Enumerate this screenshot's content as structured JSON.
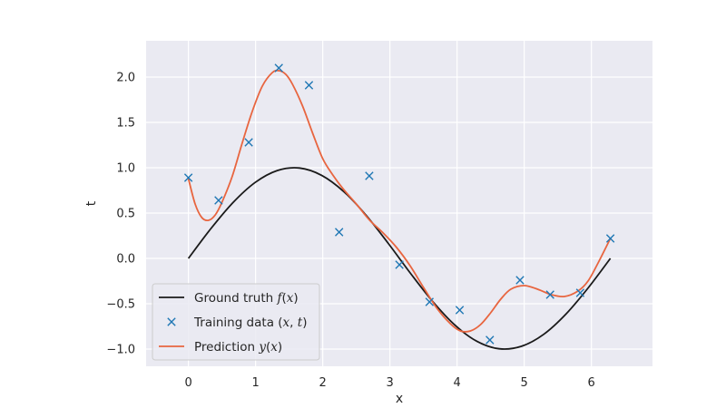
{
  "chart_data": {
    "type": "line",
    "title": "",
    "xlabel": "x",
    "ylabel": "t",
    "xlim": [
      -0.63,
      6.91
    ],
    "ylim": [
      -1.19,
      2.4
    ],
    "xticks": [
      0,
      1,
      2,
      3,
      4,
      5,
      6
    ],
    "yticks": [
      -1.0,
      -0.5,
      0.0,
      0.5,
      1.0,
      1.5,
      2.0
    ],
    "ytick_labels": [
      "−1.0",
      "−0.5",
      "0.0",
      "0.5",
      "1.0",
      "1.5",
      "2.0"
    ],
    "grid": true,
    "background": "#eaeaf2",
    "legend_position": "lower-left",
    "series": [
      {
        "name": "Ground truth f(x)",
        "legend_parts": [
          "Ground truth ",
          "f",
          "(",
          "x",
          ")"
        ],
        "kind": "line",
        "color": "#1a1a1a",
        "x": [
          0,
          0.3307,
          0.6614,
          0.9921,
          1.3228,
          1.6535,
          1.9842,
          2.3149,
          2.6456,
          2.9763,
          3.307,
          3.6377,
          3.9684,
          4.2991,
          4.6298,
          4.9605,
          5.2912,
          5.6219,
          5.9526,
          6.2832
        ],
        "y": [
          0.0,
          0.325,
          0.614,
          0.837,
          0.969,
          0.997,
          0.916,
          0.736,
          0.476,
          0.165,
          -0.165,
          -0.476,
          -0.736,
          -0.916,
          -0.997,
          -0.969,
          -0.837,
          -0.614,
          -0.325,
          0.0
        ]
      },
      {
        "name": "Training data (x, t)",
        "legend_parts": [
          "Training data ",
          "(",
          "x",
          ", ",
          "t",
          ")"
        ],
        "kind": "scatter",
        "marker": "x",
        "color": "#1f77b4",
        "x": [
          0.0,
          0.449,
          0.898,
          1.346,
          1.795,
          2.244,
          2.693,
          3.142,
          3.59,
          4.039,
          4.488,
          4.937,
          5.386,
          5.834,
          6.283
        ],
        "y": [
          0.89,
          0.64,
          1.28,
          2.1,
          1.91,
          0.29,
          0.91,
          -0.07,
          -0.48,
          -0.57,
          -0.9,
          -0.24,
          -0.4,
          -0.38,
          0.22
        ]
      },
      {
        "name": "Prediction y(x)",
        "legend_parts": [
          "Prediction ",
          "y",
          "(",
          "x",
          ")"
        ],
        "kind": "line",
        "color": "#e8653f",
        "x": [
          0.0,
          0.1,
          0.2,
          0.3,
          0.4,
          0.5,
          0.65,
          0.8,
          0.95,
          1.1,
          1.25,
          1.35,
          1.45,
          1.55,
          1.7,
          1.85,
          2.0,
          2.15,
          2.3,
          2.5,
          2.7,
          2.9,
          3.1,
          3.3,
          3.5,
          3.7,
          3.9,
          4.05,
          4.2,
          4.35,
          4.5,
          4.65,
          4.8,
          5.0,
          5.2,
          5.4,
          5.6,
          5.8,
          5.95,
          6.1,
          6.283
        ],
        "y": [
          0.88,
          0.6,
          0.45,
          0.42,
          0.48,
          0.62,
          0.9,
          1.27,
          1.62,
          1.9,
          2.05,
          2.07,
          2.03,
          1.92,
          1.68,
          1.38,
          1.1,
          0.92,
          0.77,
          0.6,
          0.42,
          0.28,
          0.12,
          -0.08,
          -0.32,
          -0.55,
          -0.72,
          -0.8,
          -0.8,
          -0.73,
          -0.6,
          -0.45,
          -0.34,
          -0.3,
          -0.34,
          -0.4,
          -0.42,
          -0.36,
          -0.25,
          -0.05,
          0.22
        ]
      }
    ]
  }
}
